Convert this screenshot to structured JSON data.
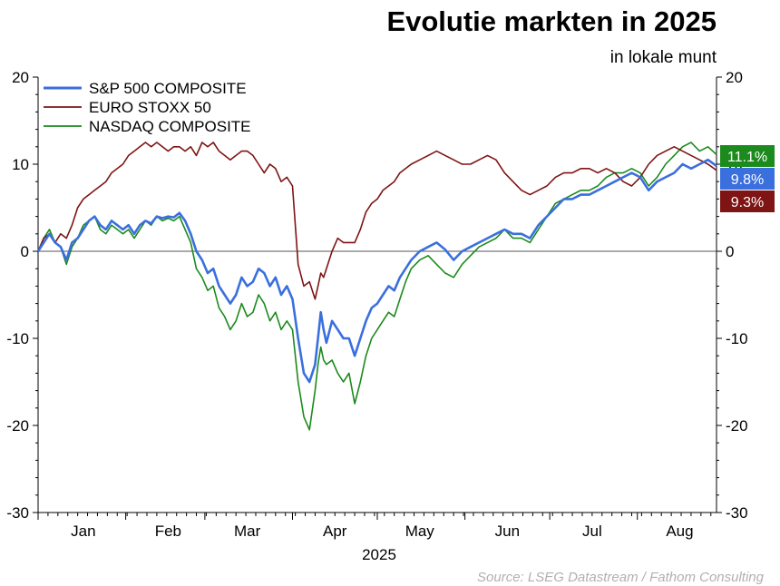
{
  "title": "Evolutie markten in 2025",
  "subtitle": "in lokale munt",
  "source": "Source: LSEG Datastream / Fathom Consulting",
  "chart_data": {
    "type": "line",
    "title": "Evolutie markten in 2025",
    "subtitle": "in lokale munt",
    "xlabel": "2025",
    "ylabel": "",
    "ylim": [
      -30,
      20
    ],
    "yticks": [
      20,
      10,
      0,
      -10,
      -20,
      -30
    ],
    "ytick_labels": [
      "20",
      "10",
      "0",
      "-10",
      "-20",
      "-30"
    ],
    "x_range_days": [
      0,
      240
    ],
    "month_labels": [
      "Jan",
      "Feb",
      "Mar",
      "Apr",
      "May",
      "Jun",
      "Jul",
      "Aug"
    ],
    "month_label_day": [
      16,
      46,
      74,
      105,
      135,
      166,
      196,
      227
    ],
    "grid": false,
    "zero_line": true,
    "legend_position": "top-left",
    "series": [
      {
        "name": "S&P 500 COMPOSITE",
        "color": "#3a6fde",
        "end_label": "9.8%",
        "end_label_value": 9.8,
        "x": [
          0,
          2,
          4,
          6,
          8,
          10,
          12,
          14,
          16,
          18,
          20,
          22,
          24,
          26,
          28,
          30,
          32,
          34,
          36,
          38,
          40,
          42,
          44,
          46,
          48,
          50,
          52,
          54,
          56,
          58,
          60,
          62,
          64,
          66,
          68,
          70,
          72,
          74,
          76,
          78,
          80,
          82,
          84,
          86,
          88,
          90,
          92,
          94,
          96,
          98,
          99,
          100,
          101,
          102,
          104,
          106,
          108,
          110,
          112,
          114,
          116,
          118,
          120,
          122,
          124,
          126,
          128,
          130,
          132,
          135,
          138,
          141,
          144,
          147,
          150,
          153,
          156,
          159,
          162,
          165,
          168,
          171,
          174,
          177,
          180,
          183,
          186,
          189,
          192,
          195,
          198,
          201,
          204,
          207,
          210,
          213,
          216,
          219,
          222,
          225,
          228,
          231,
          234,
          237,
          240
        ],
        "y": [
          0,
          1,
          2,
          1,
          0.5,
          -1,
          1,
          1.5,
          2.5,
          3.5,
          4,
          3,
          2.5,
          3.5,
          3,
          2.5,
          3,
          2,
          3,
          3.5,
          3.2,
          4,
          3.8,
          4,
          3.9,
          4.4,
          3.5,
          2,
          0,
          -1,
          -2.5,
          -2,
          -4,
          -5,
          -6,
          -5,
          -3,
          -4,
          -3.5,
          -2,
          -2.5,
          -4,
          -3,
          -5,
          -4,
          -5.5,
          -10,
          -14,
          -15,
          -13,
          -10,
          -7,
          -9,
          -10.5,
          -8,
          -9,
          -10,
          -10,
          -12,
          -10,
          -8,
          -6.5,
          -6,
          -5,
          -4,
          -4.5,
          -3,
          -2,
          -1,
          0,
          0.5,
          1,
          0.2,
          -1,
          0,
          0.5,
          1,
          1.5,
          2,
          2.5,
          2,
          2,
          1.5,
          3,
          4,
          5,
          6,
          6,
          6.5,
          6.5,
          7,
          7.5,
          8,
          8.5,
          9,
          8.5,
          7,
          8,
          8.5,
          9,
          10,
          9.5,
          10,
          10.5,
          9.8
        ]
      },
      {
        "name": "EURO STOXX 50",
        "color": "#7e1414",
        "end_label": "9.3%",
        "end_label_value": 9.3,
        "x": [
          0,
          2,
          4,
          6,
          8,
          10,
          12,
          14,
          16,
          18,
          20,
          22,
          24,
          26,
          28,
          30,
          32,
          34,
          36,
          38,
          40,
          42,
          44,
          46,
          48,
          50,
          52,
          54,
          56,
          58,
          60,
          62,
          64,
          66,
          68,
          70,
          72,
          74,
          76,
          78,
          80,
          82,
          84,
          86,
          88,
          90,
          92,
          94,
          96,
          98,
          99,
          100,
          101,
          102,
          104,
          106,
          108,
          110,
          112,
          114,
          116,
          118,
          120,
          122,
          124,
          126,
          128,
          130,
          132,
          135,
          138,
          141,
          144,
          147,
          150,
          153,
          156,
          159,
          162,
          165,
          168,
          171,
          174,
          177,
          180,
          183,
          186,
          189,
          192,
          195,
          198,
          201,
          204,
          207,
          210,
          213,
          216,
          219,
          222,
          225,
          228,
          231,
          234,
          237,
          240
        ],
        "y": [
          0,
          1.5,
          2,
          1,
          2,
          1.5,
          3,
          5,
          6,
          6.5,
          7,
          7.5,
          8,
          9,
          9.5,
          10,
          11,
          11.5,
          12,
          12.5,
          12,
          12.5,
          12,
          11.5,
          12,
          12,
          11.5,
          12,
          11,
          12.5,
          12,
          12.5,
          11.5,
          11,
          10.5,
          11,
          11.5,
          11.5,
          11,
          10,
          9,
          10,
          9.5,
          8,
          8.5,
          7.5,
          -1.5,
          -4,
          -3.5,
          -5.5,
          -4,
          -2.5,
          -3,
          -2,
          0,
          1.5,
          1,
          1,
          1,
          2.5,
          4.5,
          5.5,
          6,
          7,
          7.5,
          8,
          9,
          9.5,
          10,
          10.5,
          11,
          11.5,
          11,
          10.5,
          10,
          10,
          10.5,
          11,
          10.5,
          9,
          8,
          7,
          6.5,
          7,
          7.5,
          8.5,
          9,
          9,
          9.5,
          9.5,
          9,
          9.5,
          9,
          8,
          7.5,
          8.5,
          10,
          11,
          11.5,
          12,
          11.5,
          11,
          10.5,
          10,
          9.3
        ]
      },
      {
        "name": "NASDAQ COMPOSITE",
        "color": "#1c8a1c",
        "end_label": "11.1%",
        "end_label_value": 11.1,
        "x": [
          0,
          2,
          4,
          6,
          8,
          10,
          12,
          14,
          16,
          18,
          20,
          22,
          24,
          26,
          28,
          30,
          32,
          34,
          36,
          38,
          40,
          42,
          44,
          46,
          48,
          50,
          52,
          54,
          56,
          58,
          60,
          62,
          64,
          66,
          68,
          70,
          72,
          74,
          76,
          78,
          80,
          82,
          84,
          86,
          88,
          90,
          92,
          94,
          96,
          98,
          99,
          100,
          101,
          102,
          104,
          106,
          108,
          110,
          112,
          114,
          116,
          118,
          120,
          122,
          124,
          126,
          128,
          130,
          132,
          135,
          138,
          141,
          144,
          147,
          150,
          153,
          156,
          159,
          162,
          165,
          168,
          171,
          174,
          177,
          180,
          183,
          186,
          189,
          192,
          195,
          198,
          201,
          204,
          207,
          210,
          213,
          216,
          219,
          222,
          225,
          228,
          231,
          234,
          237,
          240
        ],
        "y": [
          0,
          1.5,
          2.5,
          1,
          0.5,
          -1.5,
          0.5,
          1.5,
          3,
          3.5,
          4,
          2.5,
          2,
          3,
          2.5,
          2,
          2.5,
          1.5,
          2.5,
          3.5,
          3,
          4,
          3.5,
          3.8,
          3.5,
          4,
          2.5,
          1,
          -2,
          -3,
          -4.5,
          -4,
          -6.5,
          -7.5,
          -9,
          -8,
          -6,
          -7.5,
          -7,
          -5,
          -6,
          -8,
          -7,
          -9,
          -8,
          -9,
          -15,
          -19,
          -20.5,
          -16,
          -13,
          -11,
          -12.5,
          -13,
          -12.5,
          -14,
          -15,
          -14,
          -17.5,
          -15,
          -12,
          -10,
          -9,
          -8,
          -7,
          -7.5,
          -5.5,
          -3.5,
          -2,
          -1,
          -0.5,
          -1.5,
          -2.5,
          -3,
          -1.5,
          -0.5,
          0.5,
          1,
          1.5,
          2.5,
          1.5,
          1.5,
          1,
          2.5,
          4,
          5.5,
          6,
          6.5,
          7,
          7,
          7.5,
          8.5,
          9,
          9,
          9.5,
          9,
          7.5,
          8.5,
          10,
          11,
          12,
          12.5,
          11.5,
          12,
          11.1
        ]
      }
    ]
  }
}
